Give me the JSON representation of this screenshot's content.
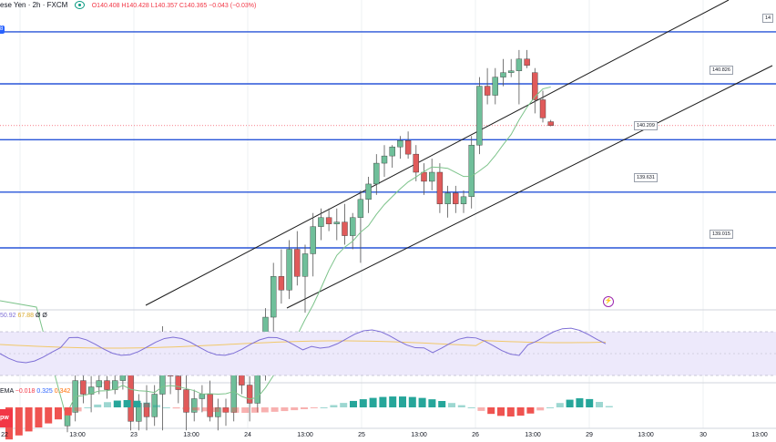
{
  "header": {
    "symbol": "ese Yen · 2h · FXCM",
    "ohlc": "O140.408 H140.428 L140.357 C140.365 −0.043 (−0.03%)"
  },
  "colors": {
    "up": "#6fbf9a",
    "down": "#e05a5a",
    "hline": "#2855d8",
    "channel": "#1a1a1a",
    "ma": "#7cc38a",
    "rsi": "#7e6fd6",
    "rsi_signal": "#f1c86a",
    "macd_up": "#26a69a",
    "macd_down": "#ef5350"
  },
  "chart_data": [
    {
      "type": "candlestick",
      "x_ticks": [
        "22",
        "13:00",
        "23",
        "13:00",
        "24",
        "13:00",
        "25",
        "13:00",
        "26",
        "13:00",
        "29",
        "13:00",
        "30",
        "13:00"
      ],
      "price_levels": [
        "140.826",
        "140.209",
        "139.631",
        "139.015",
        "14"
      ],
      "ohlc": [
        [
          137.05,
          137.25,
          136.98,
          137.2
        ],
        [
          137.2,
          137.68,
          137.1,
          137.55
        ],
        [
          137.55,
          137.7,
          137.3,
          137.4
        ],
        [
          137.4,
          137.6,
          137.2,
          137.48
        ],
        [
          137.48,
          137.62,
          137.4,
          137.55
        ],
        [
          137.55,
          137.6,
          137.35,
          137.45
        ],
        [
          137.45,
          137.65,
          137.4,
          137.55
        ],
        [
          137.55,
          137.9,
          137.45,
          137.8
        ],
        [
          137.8,
          137.95,
          137.0,
          137.1
        ],
        [
          137.1,
          137.4,
          137.0,
          137.3
        ],
        [
          137.3,
          137.5,
          137.0,
          137.15
        ],
        [
          137.15,
          137.5,
          137.05,
          137.4
        ],
        [
          137.4,
          138.15,
          137.0,
          138.05
        ],
        [
          138.05,
          138.1,
          137.4,
          137.6
        ],
        [
          137.6,
          137.75,
          137.3,
          137.45
        ],
        [
          137.45,
          137.7,
          137.0,
          137.2
        ],
        [
          137.2,
          137.45,
          137.1,
          137.35
        ],
        [
          137.35,
          137.5,
          137.2,
          137.4
        ],
        [
          137.4,
          137.55,
          137.1,
          137.15
        ],
        [
          137.15,
          137.35,
          137.0,
          137.25
        ],
        [
          137.25,
          137.35,
          137.05,
          137.2
        ],
        [
          137.2,
          137.75,
          137.1,
          137.65
        ],
        [
          137.65,
          137.8,
          137.4,
          137.5
        ],
        [
          137.5,
          137.6,
          137.1,
          137.3
        ],
        [
          137.3,
          137.7,
          137.2,
          137.65
        ],
        [
          137.65,
          138.35,
          137.55,
          138.25
        ],
        [
          138.25,
          138.85,
          138.05,
          138.7
        ],
        [
          138.7,
          139.0,
          138.4,
          138.55
        ],
        [
          138.55,
          139.1,
          138.45,
          139.0
        ],
        [
          139.0,
          139.2,
          138.6,
          138.7
        ],
        [
          138.7,
          139.05,
          138.3,
          138.95
        ],
        [
          138.95,
          139.4,
          138.7,
          139.25
        ],
        [
          139.25,
          139.45,
          139.1,
          139.35
        ],
        [
          139.35,
          139.45,
          139.2,
          139.28
        ],
        [
          139.28,
          139.45,
          139.1,
          139.3
        ],
        [
          139.3,
          139.5,
          139.05,
          139.15
        ],
        [
          139.15,
          139.4,
          139.0,
          139.35
        ],
        [
          139.35,
          139.65,
          138.85,
          139.55
        ],
        [
          139.55,
          139.8,
          139.4,
          139.72
        ],
        [
          139.72,
          140.05,
          139.6,
          139.95
        ],
        [
          139.95,
          140.15,
          139.8,
          140.03
        ],
        [
          140.03,
          140.15,
          139.9,
          140.13
        ],
        [
          140.13,
          140.25,
          140.0,
          140.2
        ],
        [
          140.2,
          140.3,
          140.0,
          140.05
        ],
        [
          140.05,
          140.15,
          139.75,
          139.85
        ],
        [
          139.85,
          139.95,
          139.6,
          139.75
        ],
        [
          139.75,
          140.0,
          139.65,
          139.85
        ],
        [
          139.85,
          139.95,
          139.4,
          139.5
        ],
        [
          139.5,
          139.7,
          139.35,
          139.62
        ],
        [
          139.62,
          139.7,
          139.4,
          139.5
        ],
        [
          139.5,
          139.65,
          139.4,
          139.58
        ],
        [
          139.58,
          140.25,
          139.45,
          140.15
        ],
        [
          140.15,
          140.9,
          140.05,
          140.8
        ],
        [
          140.8,
          141.0,
          140.6,
          140.7
        ],
        [
          140.7,
          141.0,
          140.6,
          140.9
        ],
        [
          140.9,
          141.1,
          140.8,
          140.95
        ],
        [
          140.95,
          141.1,
          140.9,
          140.97
        ],
        [
          140.97,
          141.2,
          140.6,
          141.1
        ],
        [
          141.1,
          141.2,
          141.0,
          141.03
        ],
        [
          140.95,
          141.0,
          140.5,
          140.65
        ],
        [
          140.65,
          140.75,
          140.4,
          140.45
        ],
        [
          140.408,
          140.428,
          140.357,
          140.365
        ]
      ]
    },
    {
      "type": "line",
      "name": "RSI",
      "values_text": [
        "50.92",
        "67.88",
        "Ø",
        "Ø"
      ]
    },
    {
      "type": "bar",
      "name": "MACD",
      "values_text": [
        "EMA",
        "−0.018",
        "0.325",
        "0.342"
      ]
    }
  ],
  "vpw_label": "pw"
}
